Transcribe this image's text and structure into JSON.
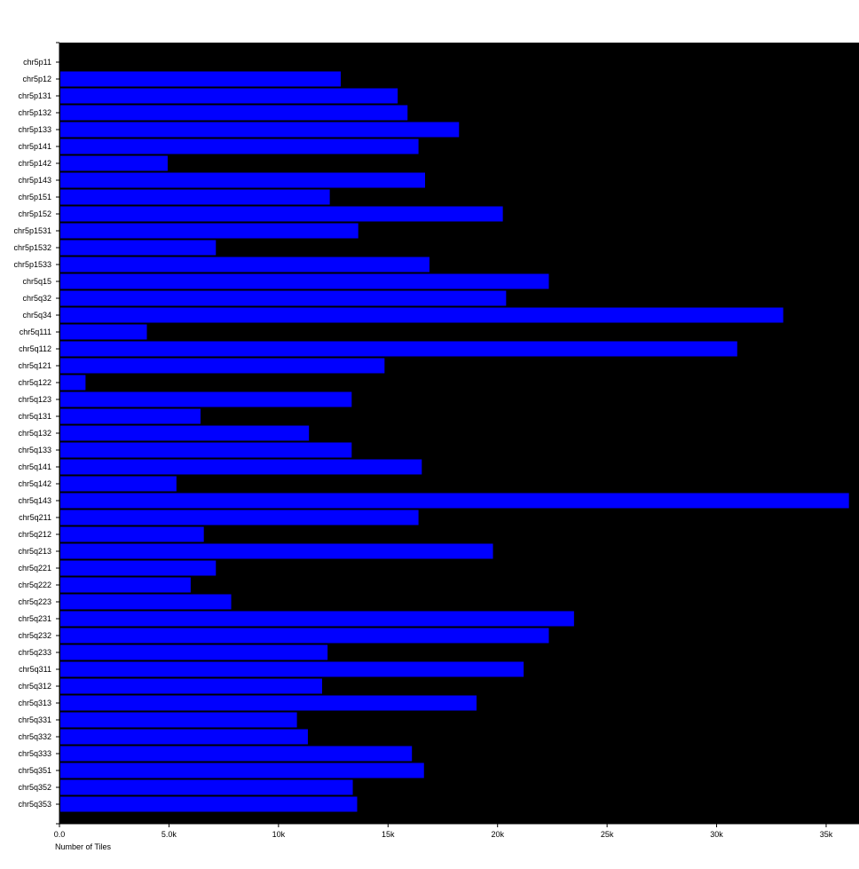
{
  "chart_data": {
    "type": "bar",
    "orientation": "horizontal",
    "title": "",
    "xlabel": "Number of Tiles",
    "ylabel": "",
    "xlim": [
      0,
      36500
    ],
    "x_ticks": [
      0,
      5000,
      10000,
      15000,
      20000,
      25000,
      30000,
      35000
    ],
    "x_tick_labels": [
      "0.0",
      "5.0k",
      "10k",
      "15k",
      "20k",
      "25k",
      "30k",
      "35k"
    ],
    "grid": false,
    "categories": [
      "chr5p11",
      "chr5p12",
      "chr5p131",
      "chr5p132",
      "chr5p133",
      "chr5p141",
      "chr5p142",
      "chr5p143",
      "chr5p151",
      "chr5p152",
      "chr5p1531",
      "chr5p1532",
      "chr5p1533",
      "chr5q15",
      "chr5q32",
      "chr5q34",
      "chr5q111",
      "chr5q112",
      "chr5q121",
      "chr5q122",
      "chr5q123",
      "chr5q131",
      "chr5q132",
      "chr5q133",
      "chr5q141",
      "chr5q142",
      "chr5q143",
      "chr5q211",
      "chr5q212",
      "chr5q213",
      "chr5q221",
      "chr5q222",
      "chr5q223",
      "chr5q231",
      "chr5q232",
      "chr5q233",
      "chr5q311",
      "chr5q312",
      "chr5q313",
      "chr5q331",
      "chr5q332",
      "chr5q333",
      "chr5q351",
      "chr5q352",
      "chr5q353"
    ],
    "values": [
      0,
      12800,
      15400,
      15850,
      18200,
      16350,
      4900,
      16650,
      12300,
      20200,
      13600,
      7100,
      16850,
      22300,
      20350,
      33000,
      3950,
      30900,
      14800,
      1150,
      13300,
      6400,
      11350,
      13300,
      16500,
      5300,
      36000,
      16350,
      6550,
      19750,
      7100,
      5950,
      7800,
      23450,
      22300,
      12200,
      21150,
      11950,
      19000,
      10800,
      11300,
      16050,
      16600,
      13350,
      13550
    ],
    "colors": {
      "bar": "#0000ff",
      "plot_background": "#000000",
      "page_background": "#ffffff",
      "text": "#000000"
    }
  }
}
